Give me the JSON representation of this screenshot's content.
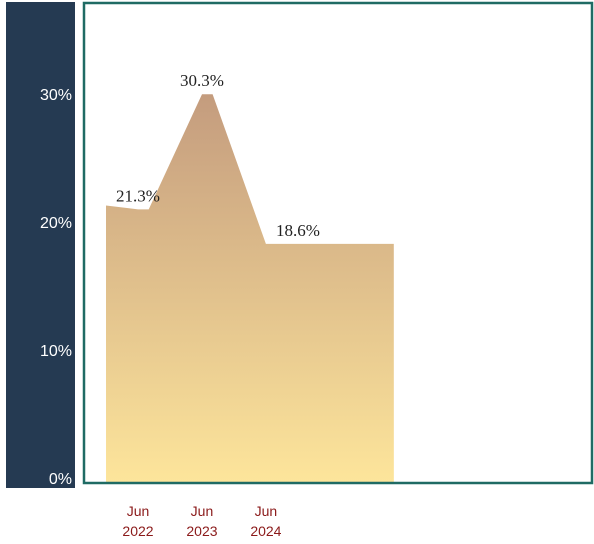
{
  "chart_data": {
    "type": "area",
    "title": "",
    "xlabel": "",
    "ylabel": "",
    "x": [
      "2021-12",
      "2022-06",
      "2022-08",
      "2023-06",
      "2023-08",
      "2024-06",
      "2024-09",
      "2025-06",
      "2026-06"
    ],
    "series": [
      {
        "values": [
          21.6,
          21.3,
          21.3,
          30.3,
          30.3,
          18.6,
          18.6,
          18.6,
          18.6
        ]
      }
    ],
    "data_labels": [
      {
        "x": "2022-06",
        "text": "21.3%"
      },
      {
        "x": "2023-06",
        "text": "30.3%"
      },
      {
        "x": "2024-06",
        "text": "18.6%"
      }
    ],
    "x_ticks": [
      {
        "x": "2022-06",
        "line1": "Jun",
        "line2": "2022"
      },
      {
        "x": "2023-06",
        "line1": "Jun",
        "line2": "2023"
      },
      {
        "x": "2024-06",
        "line1": "Jun",
        "line2": "2024"
      }
    ],
    "y_ticks": [
      {
        "value": 0,
        "label": "0%"
      },
      {
        "value": 10,
        "label": "10%"
      },
      {
        "value": 20,
        "label": "20%"
      },
      {
        "value": 30,
        "label": "30%"
      }
    ],
    "ylim": [
      0,
      38
    ],
    "grid": false,
    "legend": "none",
    "colors": {
      "area_top": "#c49c7e",
      "area_bottom": "#fde59b",
      "axis_panel": "#253a52",
      "frame": "#1f6b64",
      "x_tick_text": "#8b1a1a"
    }
  }
}
